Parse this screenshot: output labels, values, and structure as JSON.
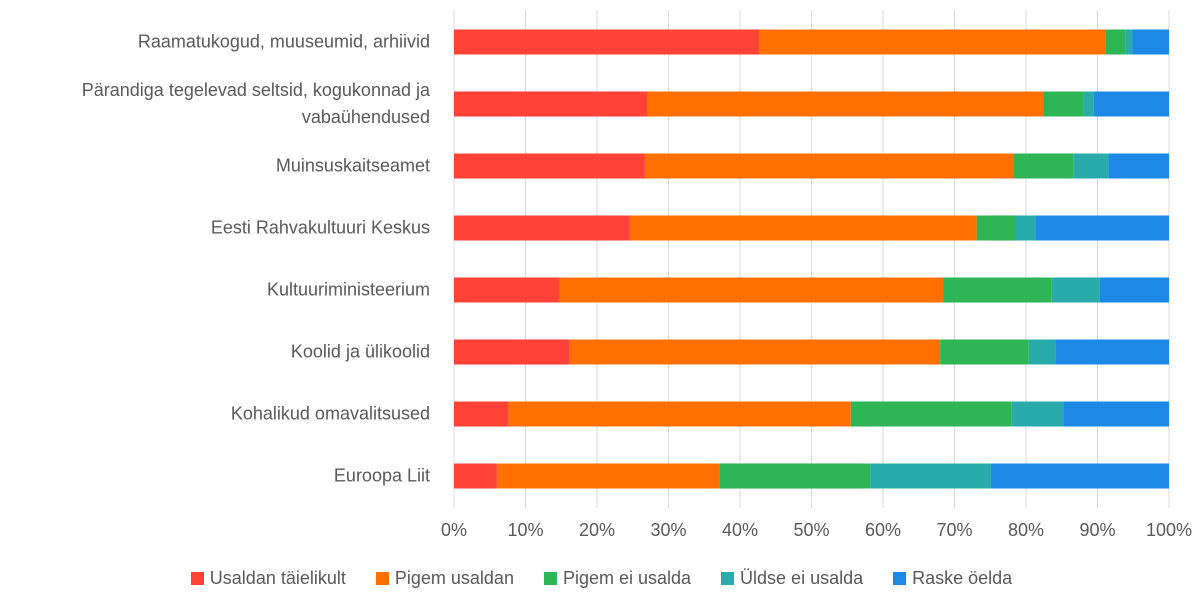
{
  "chart_data": {
    "type": "stacked-bar-horizontal",
    "categories": [
      "Raamatukogud, muuseumid, arhiivid",
      "Pärandiga tegelevad seltsid, kogukonnad ja vabaühendused",
      "Muinsuskaitseamet",
      "Eesti Rahvakultuuri Keskus",
      "Kultuuriministeerium",
      "Koolid ja ülikoolid",
      "Kohalikud omavalitsused",
      "Euroopa Liit"
    ],
    "series": [
      {
        "name": "Usaldan täielikult",
        "color": "#ff4136",
        "values": [
          42.7,
          27.1,
          26.7,
          24.6,
          14.8,
          16.2,
          7.6,
          6.0
        ]
      },
      {
        "name": "Pigem usaldan",
        "color": "#ff7000",
        "values": [
          48.4,
          55.3,
          51.5,
          48.5,
          53.6,
          51.8,
          47.9,
          31.1
        ]
      },
      {
        "name": "Pigem ei usalda",
        "color": "#2db556",
        "values": [
          2.8,
          5.7,
          8.4,
          5.5,
          15.2,
          12.4,
          22.5,
          21.1
        ]
      },
      {
        "name": "Üldse ei usalda",
        "color": "#2aabab",
        "values": [
          1.0,
          1.4,
          4.9,
          2.8,
          6.7,
          3.7,
          7.2,
          16.9
        ]
      },
      {
        "name": "Raske öelda",
        "color": "#1e88e5",
        "values": [
          5.1,
          10.5,
          8.5,
          18.6,
          9.7,
          15.9,
          14.8,
          24.9
        ]
      }
    ],
    "xlim": [
      0,
      100
    ],
    "xticks": [
      {
        "value": 0,
        "label": "0%"
      },
      {
        "value": 10,
        "label": "10%"
      },
      {
        "value": 20,
        "label": "20%"
      },
      {
        "value": 30,
        "label": "30%"
      },
      {
        "value": 40,
        "label": "40%"
      },
      {
        "value": 50,
        "label": "50%"
      },
      {
        "value": 60,
        "label": "60%"
      },
      {
        "value": 70,
        "label": "70%"
      },
      {
        "value": 80,
        "label": "80%"
      },
      {
        "value": 90,
        "label": "90%"
      },
      {
        "value": 100,
        "label": "100%"
      }
    ],
    "grid": true,
    "legend": "bottom"
  }
}
